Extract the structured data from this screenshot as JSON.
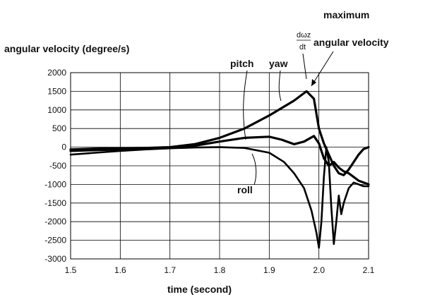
{
  "chart_data": {
    "type": "line",
    "ylabel": "angular velocity (degree/s)",
    "xlabel": "time (second)",
    "xlim": [
      1.5,
      2.1
    ],
    "ylim": [
      -3000,
      2000
    ],
    "grid": true,
    "x_ticks": [
      "1.5",
      "1.6",
      "1.7",
      "1.8",
      "1.9",
      "2.0",
      "2.1"
    ],
    "y_ticks": [
      "2000",
      "1500",
      "1000",
      "500",
      "0",
      "-500",
      "-1000",
      "-1500",
      "-2000",
      "-2500",
      "-3000"
    ],
    "series": [
      {
        "name": "yaw",
        "points": [
          [
            1.5,
            -60
          ],
          [
            1.55,
            -40
          ],
          [
            1.6,
            -30
          ],
          [
            1.65,
            -20
          ],
          [
            1.7,
            0
          ],
          [
            1.75,
            80
          ],
          [
            1.8,
            250
          ],
          [
            1.85,
            500
          ],
          [
            1.9,
            850
          ],
          [
            1.95,
            1250
          ],
          [
            1.975,
            1500
          ],
          [
            1.99,
            1300
          ],
          [
            2.0,
            500
          ],
          [
            2.01,
            100
          ],
          [
            2.02,
            -200
          ],
          [
            2.03,
            -500
          ],
          [
            2.04,
            -700
          ],
          [
            2.05,
            -750
          ],
          [
            2.06,
            -600
          ],
          [
            2.07,
            -400
          ],
          [
            2.08,
            -200
          ],
          [
            2.09,
            -50
          ],
          [
            2.1,
            0
          ]
        ]
      },
      {
        "name": "pitch",
        "points": [
          [
            1.5,
            -100
          ],
          [
            1.55,
            -80
          ],
          [
            1.6,
            -60
          ],
          [
            1.65,
            -40
          ],
          [
            1.7,
            -10
          ],
          [
            1.75,
            40
          ],
          [
            1.8,
            150
          ],
          [
            1.85,
            250
          ],
          [
            1.9,
            280
          ],
          [
            1.925,
            200
          ],
          [
            1.95,
            80
          ],
          [
            1.97,
            150
          ],
          [
            1.99,
            300
          ],
          [
            2.0,
            100
          ],
          [
            2.01,
            -300
          ],
          [
            2.02,
            -500
          ],
          [
            2.03,
            -400
          ],
          [
            2.04,
            -550
          ],
          [
            2.05,
            -650
          ],
          [
            2.06,
            -700
          ],
          [
            2.07,
            -800
          ],
          [
            2.08,
            -900
          ],
          [
            2.09,
            -950
          ],
          [
            2.1,
            -1000
          ]
        ]
      },
      {
        "name": "roll",
        "points": [
          [
            1.5,
            -200
          ],
          [
            1.55,
            -150
          ],
          [
            1.6,
            -100
          ],
          [
            1.65,
            -60
          ],
          [
            1.7,
            -30
          ],
          [
            1.75,
            -10
          ],
          [
            1.8,
            0
          ],
          [
            1.85,
            -20
          ],
          [
            1.9,
            -150
          ],
          [
            1.93,
            -400
          ],
          [
            1.95,
            -700
          ],
          [
            1.97,
            -1100
          ],
          [
            1.985,
            -1700
          ],
          [
            1.995,
            -2300
          ],
          [
            2.0,
            -2700
          ],
          [
            2.005,
            -2000
          ],
          [
            2.01,
            -800
          ],
          [
            2.015,
            0
          ],
          [
            2.02,
            -400
          ],
          [
            2.025,
            -1600
          ],
          [
            2.03,
            -2600
          ],
          [
            2.035,
            -2000
          ],
          [
            2.04,
            -1300
          ],
          [
            2.045,
            -1800
          ],
          [
            2.05,
            -1500
          ],
          [
            2.06,
            -1100
          ],
          [
            2.07,
            -950
          ],
          [
            2.08,
            -1000
          ],
          [
            2.09,
            -1050
          ],
          [
            2.1,
            -1050
          ]
        ]
      }
    ],
    "annotations": {
      "maximum": "maximum",
      "derivative_num": "dωz",
      "derivative_den": "dt",
      "max_label": "angular velocity",
      "pitch": "pitch",
      "yaw": "yaw",
      "roll": "roll"
    }
  }
}
